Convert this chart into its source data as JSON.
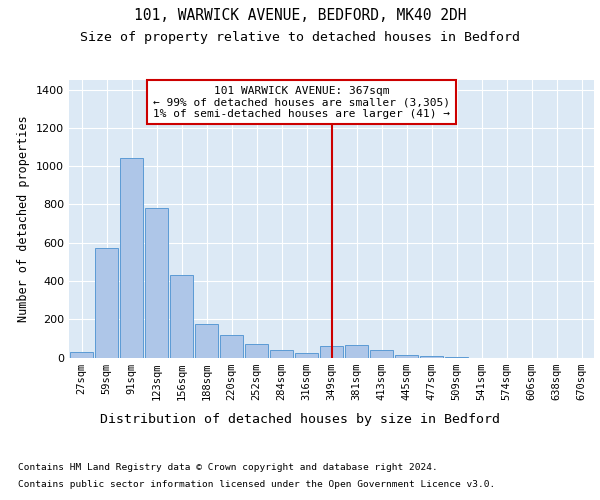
{
  "title1": "101, WARWICK AVENUE, BEDFORD, MK40 2DH",
  "title2": "Size of property relative to detached houses in Bedford",
  "xlabel": "Distribution of detached houses by size in Bedford",
  "ylabel": "Number of detached properties",
  "footnote1": "Contains HM Land Registry data © Crown copyright and database right 2024.",
  "footnote2": "Contains public sector information licensed under the Open Government Licence v3.0.",
  "annotation_line1": "101 WARWICK AVENUE: 367sqm",
  "annotation_line2": "← 99% of detached houses are smaller (3,305)",
  "annotation_line3": "1% of semi-detached houses are larger (41) →",
  "bin_labels": [
    "27sqm",
    "59sqm",
    "91sqm",
    "123sqm",
    "156sqm",
    "188sqm",
    "220sqm",
    "252sqm",
    "284sqm",
    "316sqm",
    "349sqm",
    "381sqm",
    "413sqm",
    "445sqm",
    "477sqm",
    "509sqm",
    "541sqm",
    "574sqm",
    "606sqm",
    "638sqm",
    "670sqm"
  ],
  "bar_values": [
    30,
    570,
    1040,
    780,
    430,
    175,
    120,
    70,
    40,
    25,
    60,
    65,
    40,
    15,
    10,
    5,
    0,
    0,
    0,
    0,
    0
  ],
  "bar_color": "#aec6e8",
  "bar_edge_color": "#5b9bd5",
  "vline_x_index": 10,
  "vline_color": "#cc0000",
  "annotation_box_edge_color": "#cc0000",
  "background_color": "#dce9f5",
  "ylim": [
    0,
    1450
  ],
  "yticks": [
    0,
    200,
    400,
    600,
    800,
    1000,
    1200,
    1400
  ],
  "title1_fontsize": 10.5,
  "title2_fontsize": 9.5,
  "xlabel_fontsize": 9.5,
  "ylabel_fontsize": 8.5,
  "annotation_fontsize": 8,
  "footnote_fontsize": 6.8,
  "tick_fontsize": 7.5,
  "ytick_fontsize": 8
}
